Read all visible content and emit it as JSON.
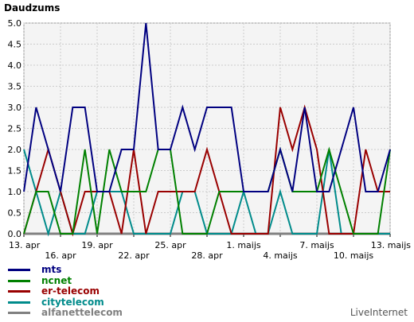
{
  "chart_data": {
    "type": "line",
    "title": "Daudzums",
    "ylim": [
      0,
      5
    ],
    "y_ticks": [
      "0.0",
      "0.5",
      "1.0",
      "1.5",
      "2.0",
      "2.5",
      "3.0",
      "3.5",
      "4.0",
      "4.5",
      "5.0"
    ],
    "grid": true,
    "legend_position": "bottom-left",
    "x_count": 31,
    "x_tick_labels": [
      {
        "i": 0,
        "label": "13. apr"
      },
      {
        "i": 3,
        "label": "16. apr"
      },
      {
        "i": 6,
        "label": "19. apr"
      },
      {
        "i": 9,
        "label": "22. apr"
      },
      {
        "i": 12,
        "label": "25. apr"
      },
      {
        "i": 15,
        "label": "28. apr"
      },
      {
        "i": 18,
        "label": "1. maijs"
      },
      {
        "i": 21,
        "label": "4. maijs"
      },
      {
        "i": 24,
        "label": "7. maijs"
      },
      {
        "i": 27,
        "label": "10. maijs"
      },
      {
        "i": 30,
        "label": "13. maijs"
      }
    ],
    "series": [
      {
        "name": "mts",
        "color": "#000080",
        "values": [
          1,
          3,
          2,
          1,
          3,
          3,
          1,
          1,
          2,
          2,
          5,
          2,
          2,
          3,
          2,
          3,
          3,
          3,
          1,
          1,
          1,
          2,
          1,
          3,
          1,
          1,
          2,
          3,
          1,
          1,
          2
        ]
      },
      {
        "name": "ncnet",
        "color": "#008000",
        "values": [
          0,
          1,
          1,
          0,
          0,
          2,
          0,
          2,
          1,
          1,
          1,
          2,
          2,
          0,
          0,
          0,
          1,
          1,
          1,
          1,
          1,
          2,
          1,
          1,
          1,
          2,
          1,
          0,
          0,
          0,
          2
        ]
      },
      {
        "name": "er-telecom",
        "color": "#990000",
        "values": [
          0,
          1,
          2,
          1,
          0,
          1,
          1,
          1,
          0,
          2,
          0,
          1,
          1,
          1,
          1,
          2,
          1,
          0,
          0,
          0,
          0,
          3,
          2,
          3,
          2,
          0,
          0,
          0,
          2,
          1,
          1
        ]
      },
      {
        "name": "citytelecom",
        "color": "#008b8b",
        "values": [
          2,
          1,
          0,
          1,
          0,
          0,
          1,
          1,
          1,
          0,
          0,
          0,
          0,
          1,
          1,
          0,
          0,
          0,
          1,
          0,
          0,
          1,
          0,
          0,
          0,
          2,
          0,
          0,
          0,
          0,
          0
        ]
      },
      {
        "name": "alfanettelecom",
        "color": "#808080",
        "values": [
          0,
          0,
          0,
          0,
          0,
          0,
          0,
          0,
          0,
          0,
          0,
          0,
          0,
          0,
          0,
          0,
          0,
          0,
          0,
          0,
          0,
          0,
          0,
          0,
          0,
          0,
          0,
          0,
          0,
          0,
          0
        ]
      }
    ]
  },
  "brand": "LiveInternet"
}
